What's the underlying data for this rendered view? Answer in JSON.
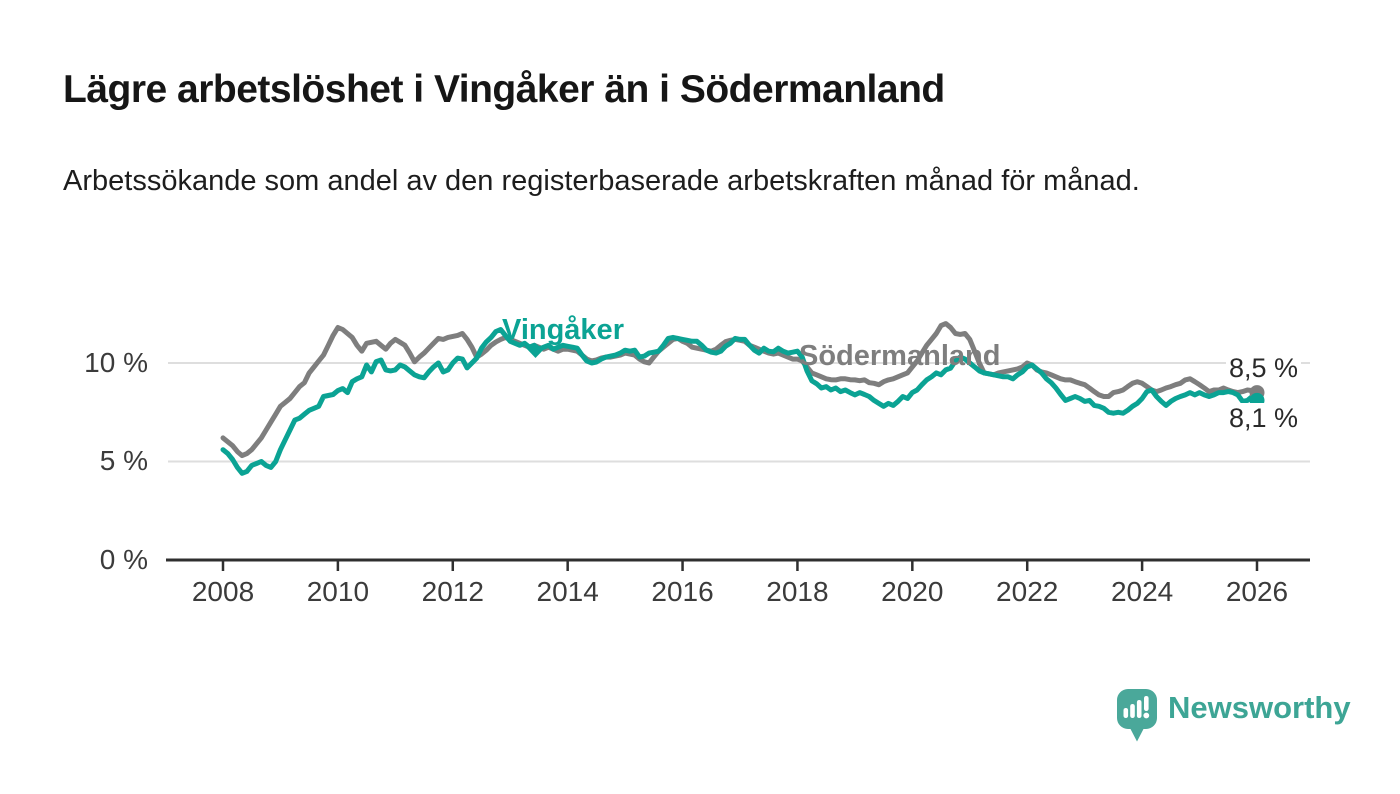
{
  "header": {
    "title": "Lägre arbetslöshet i Vingåker än i Södermanland",
    "subtitle": "Arbetssökande som andel av den registerbaserade arbetskraften månad för månad."
  },
  "chart_data": {
    "type": "line",
    "unit": "percent",
    "frequency": "monthly",
    "x_start": "2008-01",
    "x_end": "2026-01",
    "x_tick_labels": [
      "2008",
      "2010",
      "2012",
      "2014",
      "2016",
      "2018",
      "2020",
      "2022",
      "2024",
      "2026"
    ],
    "y_ticks": [
      0,
      5,
      10
    ],
    "y_tick_labels": [
      "0 %",
      "5 %",
      "10 %"
    ],
    "ylim": [
      0,
      12.5
    ],
    "grid": "horizontal",
    "legend_position": "inline-labels",
    "series": [
      {
        "name": "Vingåker",
        "color": "#0ba394",
        "end_label": "8,1 %",
        "end_value": 8.1,
        "values": [
          5.6,
          5.4,
          5.1,
          4.7,
          4.4,
          4.5,
          4.8,
          4.9,
          5.0,
          4.8,
          4.7,
          5.0,
          5.6,
          6.1,
          6.6,
          7.1,
          7.2,
          7.4,
          7.6,
          7.7,
          7.8,
          8.3,
          8.35,
          8.4,
          8.6,
          8.7,
          8.5,
          9.05,
          9.2,
          9.3,
          9.9,
          9.55,
          10.07,
          10.15,
          9.65,
          9.6,
          9.65,
          9.9,
          9.8,
          9.6,
          9.4,
          9.3,
          9.25,
          9.55,
          9.8,
          10.0,
          9.55,
          9.65,
          10.0,
          10.25,
          10.2,
          9.75,
          10.0,
          10.25,
          10.75,
          11.07,
          11.3,
          11.6,
          11.7,
          11.4,
          11.1,
          11.0,
          10.9,
          11.0,
          10.8,
          10.9,
          10.7,
          10.8,
          10.9,
          10.7,
          10.8,
          10.9,
          10.85,
          10.8,
          10.75,
          10.4,
          10.1,
          10.0,
          10.05,
          10.2,
          10.3,
          10.35,
          10.4,
          10.5,
          10.65,
          10.6,
          10.65,
          10.3,
          10.35,
          10.5,
          10.55,
          10.6,
          10.9,
          11.25,
          11.3,
          11.25,
          11.2,
          11.15,
          11.1,
          11.1,
          10.9,
          10.65,
          10.55,
          10.5,
          10.6,
          10.85,
          11.0,
          11.25,
          11.2,
          11.2,
          10.9,
          10.65,
          10.5,
          10.75,
          10.6,
          10.57,
          10.75,
          10.6,
          10.5,
          10.55,
          10.6,
          10.3,
          9.6,
          9.1,
          8.95,
          8.73,
          8.8,
          8.63,
          8.73,
          8.55,
          8.63,
          8.5,
          8.38,
          8.5,
          8.4,
          8.3,
          8.1,
          7.95,
          7.8,
          7.95,
          7.85,
          8.05,
          8.3,
          8.2,
          8.5,
          8.63,
          8.9,
          9.14,
          9.3,
          9.5,
          9.4,
          9.65,
          9.74,
          10.1,
          10.3,
          10.2,
          10.0,
          9.8,
          9.6,
          9.5,
          9.45,
          9.4,
          9.35,
          9.3,
          9.3,
          9.2,
          9.4,
          9.55,
          9.8,
          9.9,
          9.7,
          9.5,
          9.2,
          9.0,
          8.73,
          8.4,
          8.1,
          8.2,
          8.3,
          8.2,
          8.05,
          8.1,
          7.85,
          7.8,
          7.7,
          7.5,
          7.45,
          7.5,
          7.45,
          7.6,
          7.8,
          7.95,
          8.2,
          8.55,
          8.63,
          8.3,
          8.05,
          7.85,
          8.05,
          8.2,
          8.3,
          8.38,
          8.5,
          8.38,
          8.5,
          8.38,
          8.3,
          8.38,
          8.5,
          8.5,
          8.55,
          8.5,
          8.38,
          8.05,
          8.1,
          8.3,
          8.1
        ]
      },
      {
        "name": "Södermanland",
        "color": "#7e7e7e",
        "end_label": "8,5 %",
        "end_value": 8.5,
        "values": [
          6.2,
          6.0,
          5.8,
          5.5,
          5.3,
          5.4,
          5.6,
          5.9,
          6.2,
          6.6,
          7.0,
          7.4,
          7.8,
          8.0,
          8.2,
          8.5,
          8.8,
          9.0,
          9.5,
          9.8,
          10.1,
          10.4,
          10.9,
          11.4,
          11.8,
          11.7,
          11.5,
          11.3,
          10.9,
          10.6,
          11.0,
          11.05,
          11.1,
          10.9,
          10.7,
          11.0,
          11.2,
          11.05,
          10.9,
          10.5,
          10.06,
          10.3,
          10.5,
          10.75,
          11.0,
          11.25,
          11.2,
          11.3,
          11.35,
          11.4,
          11.5,
          11.2,
          10.8,
          10.3,
          10.45,
          10.65,
          10.9,
          11.07,
          11.2,
          11.3,
          11.2,
          11.1,
          11.0,
          10.9,
          10.8,
          10.9,
          10.8,
          10.7,
          10.8,
          10.7,
          10.6,
          10.7,
          10.7,
          10.65,
          10.6,
          10.4,
          10.2,
          10.1,
          10.15,
          10.25,
          10.3,
          10.3,
          10.35,
          10.4,
          10.5,
          10.45,
          10.4,
          10.2,
          10.06,
          10.0,
          10.3,
          10.6,
          10.8,
          11.0,
          11.2,
          11.25,
          11.1,
          11.0,
          10.8,
          10.75,
          10.7,
          10.65,
          10.6,
          10.7,
          10.9,
          11.08,
          11.15,
          11.2,
          11.15,
          11.1,
          10.9,
          10.8,
          10.7,
          10.6,
          10.5,
          10.45,
          10.5,
          10.4,
          10.3,
          10.2,
          10.2,
          10.1,
          9.8,
          9.5,
          9.4,
          9.3,
          9.2,
          9.15,
          9.14,
          9.2,
          9.2,
          9.15,
          9.14,
          9.1,
          9.14,
          9.0,
          8.97,
          8.9,
          9.05,
          9.14,
          9.2,
          9.3,
          9.4,
          9.5,
          9.8,
          10.1,
          10.5,
          10.9,
          11.2,
          11.5,
          11.9,
          12.0,
          11.8,
          11.5,
          11.45,
          11.5,
          11.2,
          10.6,
          10.0,
          9.5,
          9.45,
          9.4,
          9.5,
          9.55,
          9.6,
          9.65,
          9.7,
          9.8,
          10.0,
          9.9,
          9.65,
          9.55,
          9.5,
          9.4,
          9.3,
          9.2,
          9.14,
          9.14,
          9.05,
          8.97,
          8.9,
          8.73,
          8.55,
          8.38,
          8.3,
          8.3,
          8.5,
          8.55,
          8.63,
          8.8,
          8.97,
          9.05,
          8.97,
          8.8,
          8.63,
          8.55,
          8.63,
          8.73,
          8.8,
          8.9,
          8.97,
          9.14,
          9.2,
          9.05,
          8.9,
          8.73,
          8.55,
          8.63,
          8.63,
          8.73,
          8.63,
          8.55,
          8.5,
          8.55,
          8.63,
          8.6,
          8.5
        ]
      }
    ]
  },
  "branding": {
    "logo_text": "Newsworthy"
  }
}
